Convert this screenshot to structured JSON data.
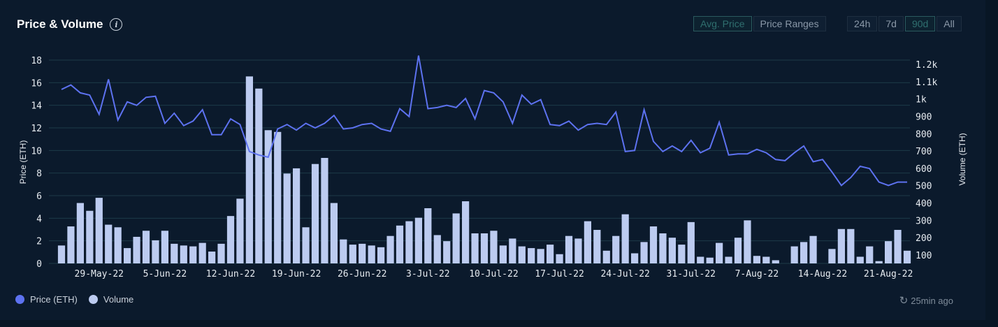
{
  "header": {
    "title": "Price & Volume"
  },
  "toggles": {
    "mode": [
      {
        "label": "Avg. Price",
        "active": true
      },
      {
        "label": "Price Ranges",
        "active": false
      }
    ],
    "range": [
      {
        "label": "24h",
        "active": false
      },
      {
        "label": "7d",
        "active": false
      },
      {
        "label": "90d",
        "active": true
      },
      {
        "label": "All",
        "active": false
      }
    ]
  },
  "legend": {
    "price": "Price (ETH)",
    "volume": "Volume"
  },
  "status": {
    "updated": "25min ago"
  },
  "colors": {
    "price": "#5d72f0",
    "volume": "#bccbf0",
    "grid": "#1c3a48",
    "background": "#0b1a2c"
  },
  "chart_data": {
    "type": "bar+line",
    "x_tick_labels": [
      "29-May-22",
      "5-Jun-22",
      "12-Jun-22",
      "19-Jun-22",
      "26-Jun-22",
      "3-Jul-22",
      "10-Jul-22",
      "17-Jul-22",
      "24-Jul-22",
      "31-Jul-22",
      "7-Aug-22",
      "14-Aug-22",
      "21-Aug-22"
    ],
    "x_tick_index": [
      4,
      11,
      18,
      25,
      32,
      39,
      46,
      53,
      60,
      67,
      74,
      81,
      88
    ],
    "y_left": {
      "label": "Price (ETH)",
      "min": 0,
      "max": 18,
      "ticks": [
        0,
        2,
        4,
        6,
        8,
        10,
        12,
        14,
        16,
        18
      ]
    },
    "y_right": {
      "label": "Volume (ETH)",
      "min": 50,
      "max": 1200,
      "ticks": [
        100,
        200,
        300,
        400,
        500,
        600,
        700,
        800,
        900,
        "1k",
        "1.1k",
        "1.2k"
      ]
    },
    "series": [
      {
        "name": "Price (ETH)",
        "type": "line",
        "values": [
          15.4,
          15.8,
          15.1,
          14.9,
          13.2,
          16.3,
          12.7,
          14.3,
          14.0,
          14.7,
          14.8,
          12.4,
          13.3,
          12.2,
          12.6,
          13.6,
          11.4,
          11.4,
          12.8,
          12.3,
          9.9,
          9.6,
          9.4,
          11.9,
          12.3,
          11.8,
          12.4,
          12.0,
          12.4,
          13.1,
          11.9,
          12.0,
          12.3,
          12.4,
          11.9,
          11.7,
          13.7,
          13.0,
          18.4,
          13.7,
          13.8,
          14.0,
          13.8,
          14.6,
          12.8,
          15.3,
          15.1,
          14.3,
          12.4,
          14.9,
          14.1,
          14.5,
          12.3,
          12.2,
          12.6,
          11.8,
          12.3,
          12.4,
          12.3,
          13.4,
          9.9,
          10.0,
          13.6,
          10.8,
          9.9,
          10.4,
          9.9,
          10.9,
          9.8,
          10.2,
          12.5,
          9.6,
          9.7,
          9.7,
          10.1,
          9.8,
          9.2,
          9.1,
          9.8,
          10.4,
          9.0,
          9.2,
          8.1,
          6.9,
          7.6,
          8.6,
          8.4,
          7.2,
          6.9,
          7.2,
          7.2
        ]
      },
      {
        "name": "Volume",
        "type": "bar",
        "values": [
          155,
          265,
          400,
          355,
          430,
          275,
          260,
          140,
          205,
          240,
          185,
          240,
          165,
          155,
          150,
          170,
          120,
          165,
          325,
          425,
          1130,
          1060,
          820,
          810,
          570,
          600,
          260,
          625,
          660,
          400,
          190,
          160,
          165,
          155,
          145,
          210,
          270,
          295,
          315,
          370,
          215,
          180,
          340,
          410,
          225,
          225,
          240,
          155,
          195,
          150,
          140,
          135,
          160,
          105,
          210,
          195,
          295,
          245,
          125,
          210,
          335,
          110,
          175,
          265,
          225,
          200,
          160,
          290,
          90,
          85,
          170,
          90,
          200,
          300,
          95,
          90,
          70,
          45,
          150,
          175,
          210,
          45,
          135,
          250,
          250,
          90,
          150,
          65,
          180,
          245,
          125
        ]
      }
    ]
  }
}
